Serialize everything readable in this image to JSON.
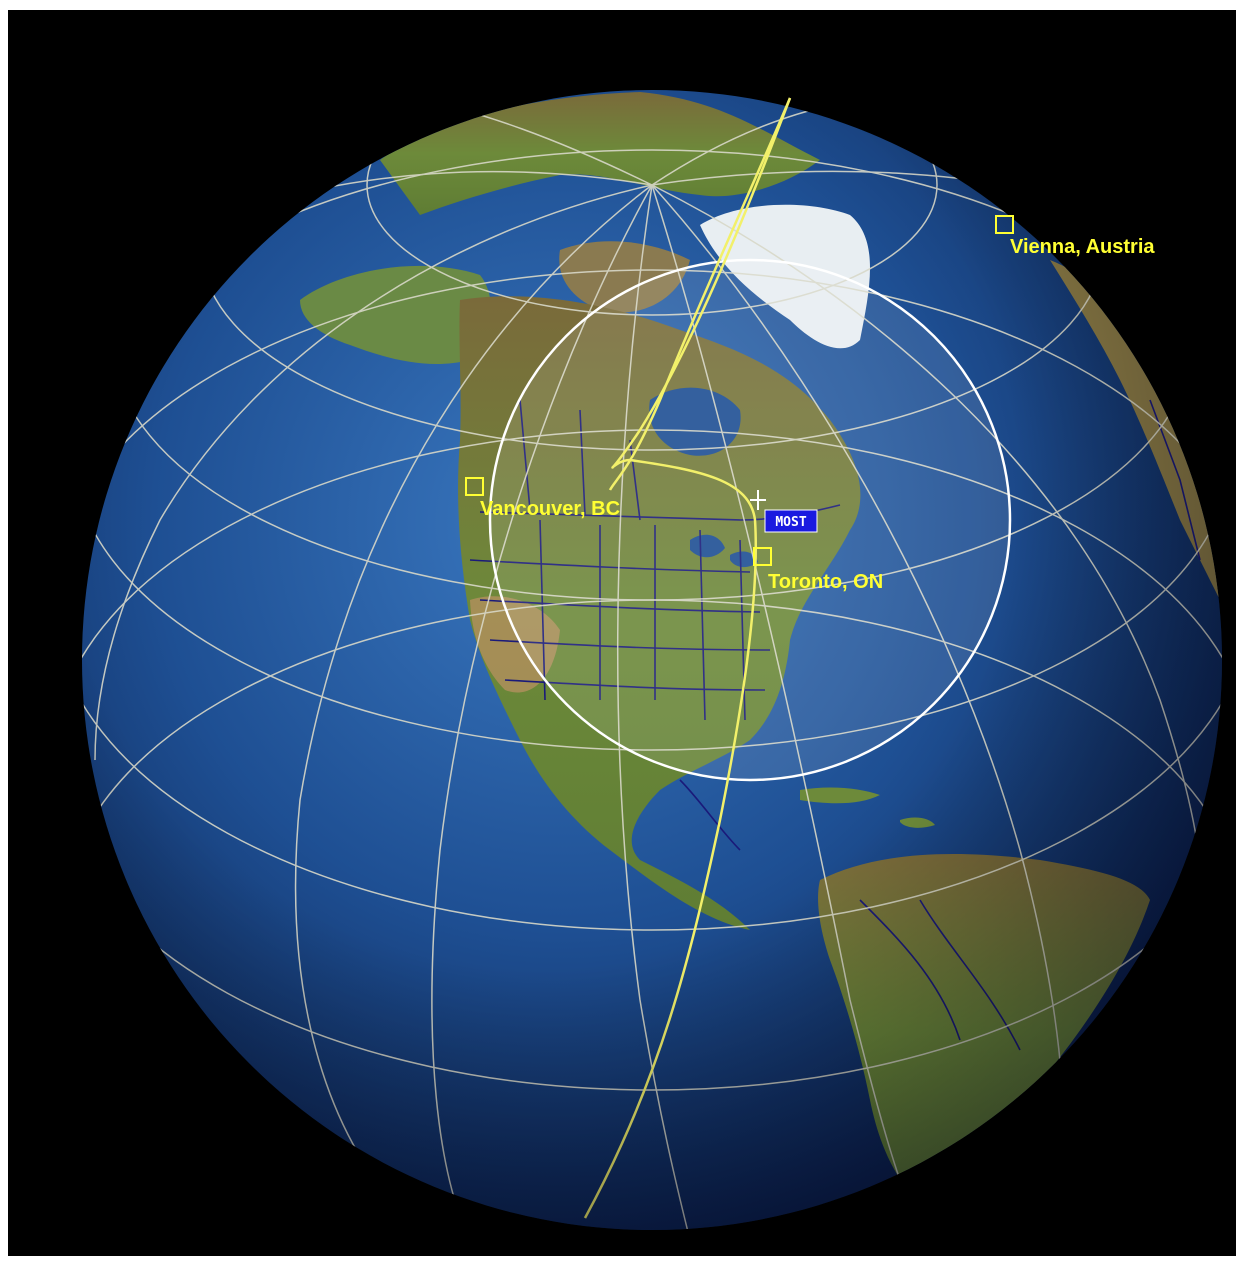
{
  "map": {
    "colors": {
      "background": "#000000",
      "ocean": "#1e4f93",
      "land": "#6f8a3c",
      "ice": "#e8eef2",
      "graticule": "#d8d8c8",
      "ground_track": "#f2f06a",
      "coverage_circle": "#ffffff",
      "borders": "#1a1a7a",
      "label": "#ffff33",
      "satellite_badge": "#1a1ae0"
    },
    "satellite": {
      "label": "MOST"
    },
    "locations": [
      {
        "id": "vancouver",
        "label": "Vancouver, BC",
        "marker": "square-marker"
      },
      {
        "id": "toronto",
        "label": "Toronto, ON",
        "marker": "square-marker"
      },
      {
        "id": "vienna",
        "label": "Vienna, Austria",
        "marker": "square-marker"
      }
    ]
  }
}
